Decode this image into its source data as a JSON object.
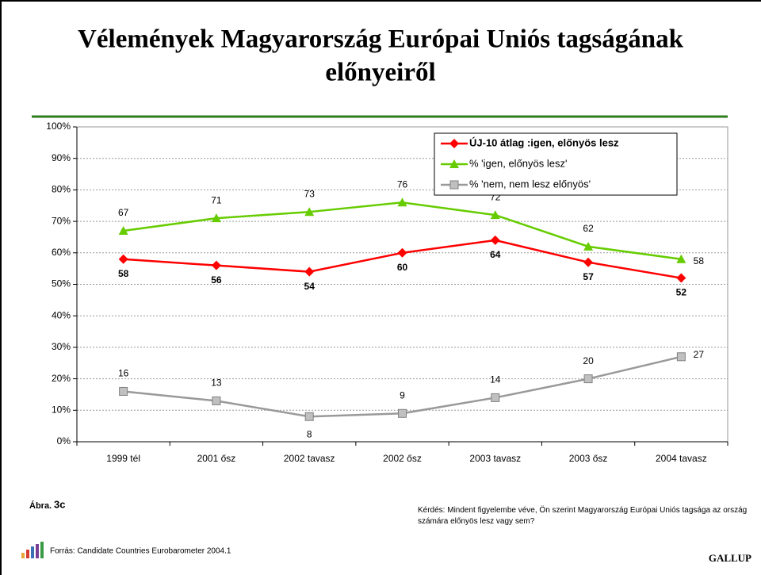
{
  "chart_data": {
    "type": "line",
    "title": [
      "Vélemények Magyarország Európai Uniós tagságának",
      "előnyeiről"
    ],
    "categories": [
      "1999 tél",
      "2001 ősz",
      "2002 tavasz",
      "2002 ősz",
      "2003 tavasz",
      "2003 ősz",
      "2004 tavasz"
    ],
    "series": [
      {
        "name": "ÚJ-10 átlag :igen, előnyös lesz",
        "color": "#ff0000",
        "marker": "diamond",
        "values": [
          58,
          56,
          54,
          60,
          64,
          57,
          52
        ]
      },
      {
        "name": "% 'igen, előnyös lesz'",
        "color": "#66cc00",
        "marker": "triangle",
        "values": [
          67,
          71,
          73,
          76,
          72,
          62,
          58
        ]
      },
      {
        "name": "% 'nem, nem lesz előnyös'",
        "color": "#999999",
        "marker": "square",
        "values": [
          16,
          13,
          8,
          9,
          14,
          20,
          27
        ]
      }
    ],
    "ylim": [
      0,
      100
    ],
    "yticks": [
      {
        "value": 0,
        "label": "0%"
      },
      {
        "value": 10,
        "label": "10%"
      },
      {
        "value": 20,
        "label": "20%"
      },
      {
        "value": 30,
        "label": "30%"
      },
      {
        "value": 40,
        "label": "40%"
      },
      {
        "value": 50,
        "label": "50%"
      },
      {
        "value": 60,
        "label": "60%"
      },
      {
        "value": 70,
        "label": "70%"
      },
      {
        "value": 80,
        "label": "80%"
      },
      {
        "value": 90,
        "label": "90%"
      },
      {
        "value": 100,
        "label": "100%"
      }
    ],
    "grid": true,
    "legend": "top-right"
  },
  "footer": {
    "figure_label": "Ábra.",
    "figure_number": "3c",
    "question": "Kérdés: Mindent figyelembe véve, Ön szerint Magyarország Európai Uniós tagsága az ország számára előnyös lesz vagy sem?",
    "source": "Forrás: Candidate Countries Eurobarometer 2004.1",
    "brand": "GALLUP"
  }
}
